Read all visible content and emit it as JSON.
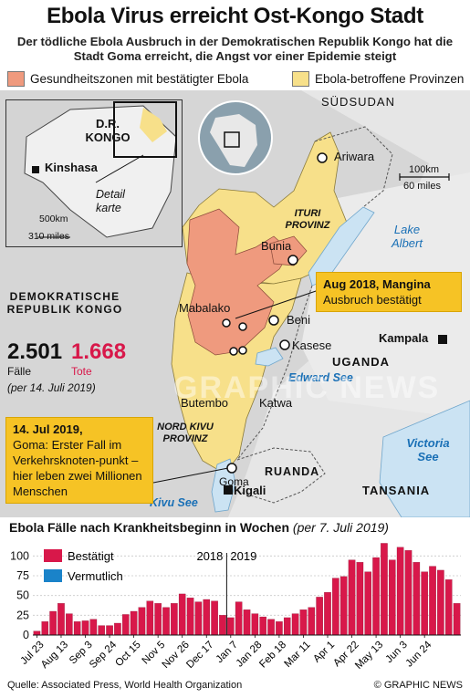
{
  "header": {
    "title": "Ebola Virus erreicht Ost-Kongo Stadt",
    "subtitle": "Der tödliche Ebola Ausbruch in der Demokratischen Republik Kongo hat die Stadt Goma erreicht, die Angst vor einer Epidemie steigt"
  },
  "legend": {
    "confirmed_zones": "Gesundheitszonen mit bestätigter Ebola",
    "affected_provinces": "Ebola-betroffene Provinzen",
    "colors": {
      "zones": "#ef9a7e",
      "provinces": "#f7e08a"
    }
  },
  "map": {
    "countries": {
      "south_sudan": "SÜDSUDAN",
      "drc": "DEMOKRATISCHE REPUBLIK KONGO",
      "uganda": "UGANDA",
      "rwanda": "RUANDA",
      "tanzania": "TANSANIA"
    },
    "provinces": {
      "ituri": "ITURI PROVINZ",
      "nord_kivu": "NORD KIVU PROVINZ"
    },
    "places": {
      "ariwara": "Ariwara",
      "bunia": "Bunia",
      "mabalako": "Mabalako",
      "beni": "Beni",
      "kasese": "Kasese",
      "butembo": "Butembo",
      "katwa": "Katwa",
      "goma": "Goma",
      "kigali": "Kigali",
      "kampala": "Kampala"
    },
    "water": {
      "lake_albert": "Lake Albert",
      "edward_see": "Edward See",
      "victoria_see": "Victoria See",
      "kivu_see": "Kivu See"
    },
    "scale": {
      "km": "100km",
      "miles": "60 miles"
    },
    "inset": {
      "country": "D.R. KONGO",
      "capital": "Kinshasa",
      "detail": "Detail karte",
      "scale_km": "500km",
      "scale_miles": "310 miles"
    },
    "watermark": "GRAPHIC NEWS"
  },
  "stats": {
    "cases": "2.501",
    "cases_label": "Fälle",
    "deaths": "1.668",
    "deaths_label": "Tote",
    "asof": "(per 14. Juli 2019)"
  },
  "callouts": {
    "mangina_title": "Aug 2018, Mangina",
    "mangina_text": "Ausbruch bestätigt",
    "goma_title": "14. Jul 2019,",
    "goma_text": "Goma: Erster Fall im Verkehrsknoten-punkt – hier leben zwei Millionen Menschen"
  },
  "chart_data": {
    "type": "bar",
    "title": "Ebola Fälle nach Krankheitsbeginn in Wochen",
    "note": "(per 7. Juli 2019)",
    "ylim": [
      0,
      120
    ],
    "yticks": [
      0,
      25,
      50,
      75,
      100
    ],
    "xtick_labels": [
      "Jul 23",
      "Aug 13",
      "Sep 3",
      "Sep 24",
      "Oct 15",
      "Nov 5",
      "Nov 26",
      "Dec 17",
      "Jan 7",
      "Jan 28",
      "Feb 18",
      "Mar 11",
      "Apr 1",
      "Apr 22",
      "May 13",
      "Jun 3",
      "Jun 24"
    ],
    "xtick_every": 3,
    "year_labels": [
      "2018",
      "2019"
    ],
    "year_divider_week": 24,
    "series": [
      {
        "name": "Bestätigt",
        "color": "#d8184a",
        "values": [
          5,
          17,
          30,
          40,
          27,
          17,
          18,
          20,
          12,
          12,
          15,
          26,
          30,
          35,
          43,
          40,
          35,
          40,
          52,
          47,
          42,
          45,
          43,
          25,
          22,
          42,
          32,
          27,
          23,
          20,
          17,
          22,
          27,
          32,
          35,
          48,
          54,
          72,
          74,
          95,
          92,
          80,
          98,
          116,
          95,
          111,
          107,
          92,
          80,
          87,
          82,
          70,
          40
        ]
      },
      {
        "name": "Vermutlich",
        "color": "#1a83c9",
        "values": [
          0,
          0,
          2,
          2,
          1,
          1,
          1,
          1,
          1,
          1,
          1,
          2,
          1,
          4,
          2,
          2,
          1,
          2,
          2,
          3,
          5,
          2,
          1,
          1,
          0,
          1,
          1,
          0,
          1,
          0,
          1,
          1,
          1,
          2,
          1,
          1,
          1,
          2,
          1,
          0,
          2,
          0,
          1,
          0,
          1,
          2,
          1,
          2,
          1,
          0,
          0,
          0,
          0
        ]
      }
    ]
  },
  "footer": {
    "source": "Quelle: Associated Press, World Health Organization",
    "credit": "© GRAPHIC NEWS"
  }
}
